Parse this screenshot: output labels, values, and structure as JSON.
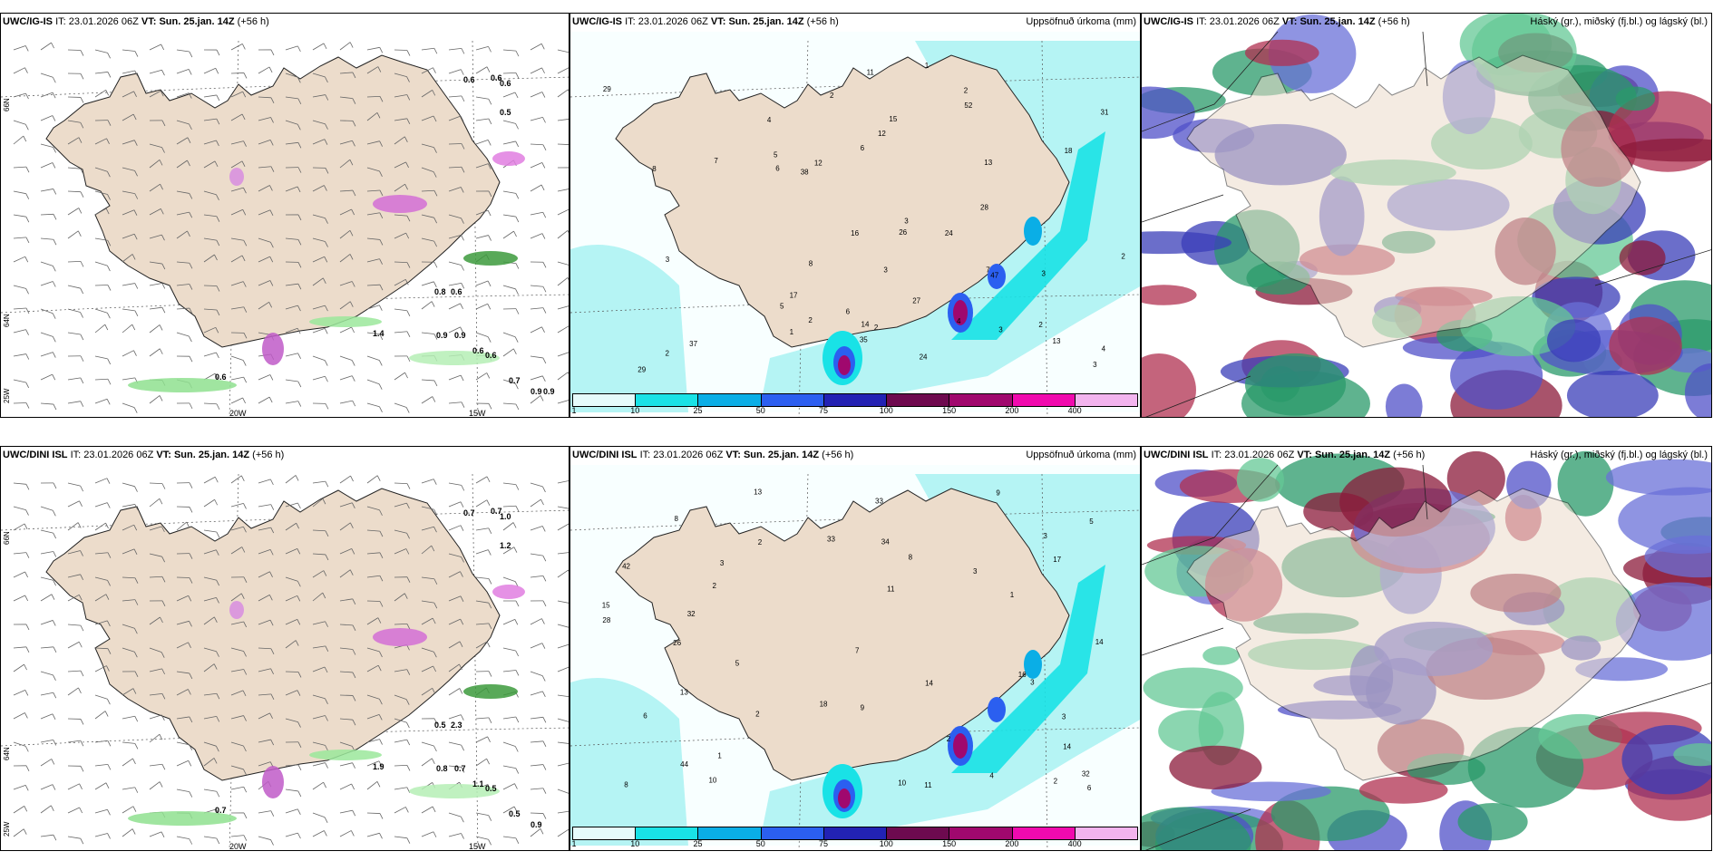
{
  "rows": [
    {
      "model": "UWC/IG-IS",
      "panels": [
        {
          "rlabel": "",
          "type": "wind",
          "values": [
            "0.6",
            "0.6",
            "0.6",
            "0.5",
            "1.4",
            "0.8",
            "0.6",
            "0.9",
            "0.9",
            "0.6",
            "0.6",
            "0.6",
            "0.7",
            "0.9",
            "0.9"
          ],
          "lon": [
            "20W",
            "15W"
          ],
          "lat": [
            "66N",
            "64N",
            "25W"
          ]
        },
        {
          "rlabel": "Uppsöfnuð úrkoma (mm)",
          "type": "precip",
          "values": [
            "2",
            "3",
            "3",
            "3",
            "2",
            "1",
            "2",
            "2",
            "3",
            "5",
            "3",
            "6",
            "2",
            "11",
            "4",
            "5",
            "7",
            "3",
            "16",
            "31",
            "29",
            "37",
            "35",
            "24",
            "47",
            "52",
            "12",
            "12",
            "18",
            "27",
            "13",
            "8",
            "15",
            "29",
            "26",
            "24",
            "14",
            "13",
            "8",
            "6",
            "7",
            "17",
            "4",
            "1",
            "28",
            "38",
            "6",
            "2",
            "2",
            "4"
          ]
        },
        {
          "rlabel": "Háský (gr.), miðský (fj.bl.) og lágský (bl.)",
          "type": "cloud"
        }
      ]
    },
    {
      "model": "UWC/DINI ISL",
      "panels": [
        {
          "rlabel": "",
          "type": "wind",
          "values": [
            "0.7",
            "0.7",
            "1.0",
            "1.2",
            "1.9",
            "0.5",
            "2.3",
            "0.8",
            "0.7",
            "1.1",
            "0.5",
            "0.7",
            "0.5",
            "0.9"
          ],
          "lon": [
            "20W",
            "15W"
          ],
          "lat": [
            "66N",
            "64N",
            "25W"
          ]
        },
        {
          "rlabel": "Uppsöfnuð úrkoma (mm)",
          "type": "precip",
          "values": [
            "3",
            "3",
            "2",
            "3",
            "1",
            "2",
            "6",
            "7",
            "5",
            "15",
            "13",
            "33",
            "32",
            "34",
            "44",
            "13",
            "11",
            "9",
            "8",
            "2",
            "10",
            "5",
            "10",
            "6",
            "26",
            "33",
            "32",
            "28",
            "14",
            "14",
            "17",
            "16",
            "11",
            "42",
            "18",
            "9",
            "14",
            "8",
            "8",
            "3",
            "2",
            "1",
            "2",
            "3",
            "4"
          ]
        },
        {
          "rlabel": "Háský (gr.), miðský (fj.bl.) og lágský (bl.)",
          "type": "cloud"
        }
      ]
    }
  ],
  "header": {
    "it_label": "IT:",
    "it_value": "23.01.2026 06Z",
    "vt_label": "VT:",
    "vt_value": "Sun. 25.jan. 14Z",
    "lead": "(+56 h)"
  },
  "legend": {
    "ticks": [
      "1",
      "10",
      "25",
      "50",
      "75",
      "100",
      "150",
      "200",
      "400"
    ],
    "colors": [
      "#e6fbfb",
      "#19e2e6",
      "#0aaee6",
      "#2b5ff0",
      "#2222b4",
      "#6d0a4f",
      "#a0086e",
      "#f00aae",
      "#f2b4ee"
    ]
  },
  "colors": {
    "land": "#ecdccb",
    "sea": "#ffffff",
    "coast": "#222222"
  }
}
